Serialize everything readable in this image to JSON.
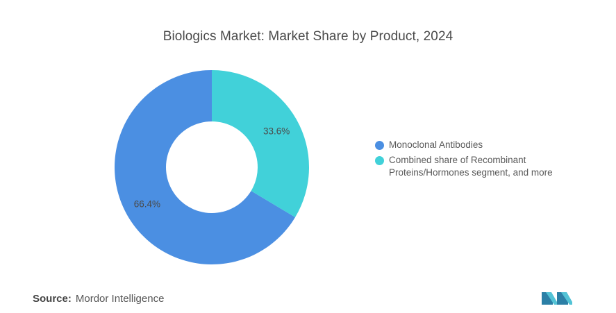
{
  "title": "Biologics Market: Market Share by Product, 2024",
  "source": {
    "label": "Source:",
    "value": "Mordor Intelligence"
  },
  "colors": {
    "monoclonal": "#4b8fe2",
    "recombinant": "#41d1d9"
  },
  "logo": "mordor-intelligence-logo",
  "chart_data": {
    "type": "pie",
    "donut": true,
    "title": "Biologics Market: Market Share by Product, 2024",
    "categories": [
      "Monoclonal Antibodies",
      "Combined share of Recombinant Proteins/Hormones segment, and more"
    ],
    "values": [
      66.4,
      33.6
    ],
    "data_labels": [
      "66.4%",
      "33.6%"
    ],
    "legend_position": "right",
    "legend": [
      {
        "label": "Monoclonal Antibodies",
        "color": "#4b8fe2"
      },
      {
        "label": "Combined share of Recombinant Proteins/Hormones segment, and more",
        "color": "#41d1d9"
      }
    ]
  }
}
